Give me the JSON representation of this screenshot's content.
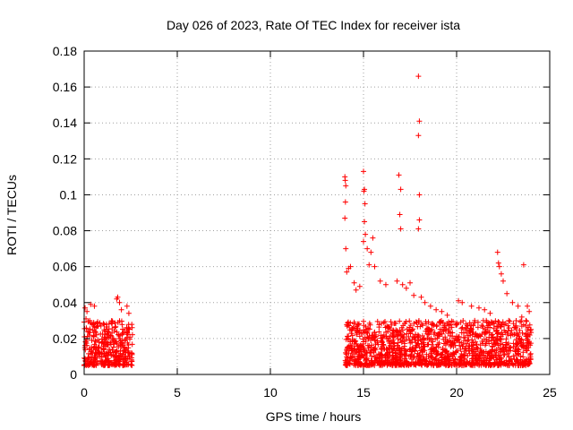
{
  "chart_data": {
    "type": "scatter",
    "title": "Day 026 of 2023, Rate Of TEC Index for receiver ista",
    "xlabel": "GPS time / hours",
    "ylabel": "ROTI / TECUs",
    "xlim": [
      0,
      25
    ],
    "ylim": [
      0,
      0.18
    ],
    "xticks": [
      "0",
      "5",
      "10",
      "15",
      "20",
      "25"
    ],
    "yticks": [
      "0",
      "0.02",
      "0.04",
      "0.06",
      "0.08",
      "0.1",
      "0.12",
      "0.14",
      "0.16",
      "0.18"
    ],
    "grid": true,
    "legend": "none",
    "marker": "+",
    "color": "#ff0000",
    "clusters": [
      {
        "x_range": [
          0.0,
          2.6
        ],
        "y_range": [
          0.005,
          0.03
        ]
      },
      {
        "x_range": [
          14.0,
          24.0
        ],
        "y_range": [
          0.005,
          0.03
        ]
      }
    ],
    "points": [
      [
        0.05,
        0.037
      ],
      [
        0.15,
        0.035
      ],
      [
        0.35,
        0.039
      ],
      [
        0.55,
        0.038
      ],
      [
        0.1,
        0.031
      ],
      [
        0.3,
        0.03
      ],
      [
        0.9,
        0.027
      ],
      [
        1.2,
        0.028
      ],
      [
        1.5,
        0.029
      ],
      [
        1.75,
        0.042
      ],
      [
        1.8,
        0.043
      ],
      [
        1.9,
        0.04
      ],
      [
        2.0,
        0.036
      ],
      [
        2.3,
        0.038
      ],
      [
        2.4,
        0.034
      ],
      [
        14.0,
        0.11
      ],
      [
        14.02,
        0.108
      ],
      [
        14.05,
        0.105
      ],
      [
        14.03,
        0.096
      ],
      [
        14.0,
        0.087
      ],
      [
        14.05,
        0.07
      ],
      [
        14.1,
        0.057
      ],
      [
        14.2,
        0.059
      ],
      [
        14.3,
        0.06
      ],
      [
        14.5,
        0.051
      ],
      [
        14.6,
        0.047
      ],
      [
        14.8,
        0.049
      ],
      [
        15.0,
        0.113
      ],
      [
        15.05,
        0.103
      ],
      [
        15.02,
        0.102
      ],
      [
        15.08,
        0.095
      ],
      [
        15.05,
        0.085
      ],
      [
        15.1,
        0.078
      ],
      [
        15.0,
        0.074
      ],
      [
        15.2,
        0.07
      ],
      [
        15.5,
        0.076
      ],
      [
        15.4,
        0.068
      ],
      [
        15.3,
        0.061
      ],
      [
        15.6,
        0.06
      ],
      [
        15.9,
        0.052
      ],
      [
        16.2,
        0.05
      ],
      [
        16.9,
        0.111
      ],
      [
        17.0,
        0.103
      ],
      [
        16.95,
        0.089
      ],
      [
        17.0,
        0.081
      ],
      [
        16.8,
        0.052
      ],
      [
        17.1,
        0.05
      ],
      [
        17.3,
        0.048
      ],
      [
        17.5,
        0.051
      ],
      [
        17.95,
        0.166
      ],
      [
        18.0,
        0.141
      ],
      [
        17.95,
        0.133
      ],
      [
        18.0,
        0.1
      ],
      [
        18.0,
        0.086
      ],
      [
        17.95,
        0.081
      ],
      [
        17.7,
        0.044
      ],
      [
        18.1,
        0.043
      ],
      [
        18.3,
        0.04
      ],
      [
        18.6,
        0.038
      ],
      [
        18.9,
        0.036
      ],
      [
        19.2,
        0.035
      ],
      [
        19.5,
        0.033
      ],
      [
        20.1,
        0.041
      ],
      [
        20.3,
        0.04
      ],
      [
        20.8,
        0.038
      ],
      [
        21.2,
        0.037
      ],
      [
        21.5,
        0.036
      ],
      [
        21.8,
        0.034
      ],
      [
        22.2,
        0.068
      ],
      [
        22.25,
        0.062
      ],
      [
        22.3,
        0.06
      ],
      [
        22.4,
        0.056
      ],
      [
        22.5,
        0.052
      ],
      [
        22.7,
        0.045
      ],
      [
        23.0,
        0.04
      ],
      [
        23.3,
        0.038
      ],
      [
        23.6,
        0.061
      ],
      [
        23.8,
        0.038
      ],
      [
        23.9,
        0.035
      ],
      [
        23.5,
        0.032
      ]
    ]
  }
}
